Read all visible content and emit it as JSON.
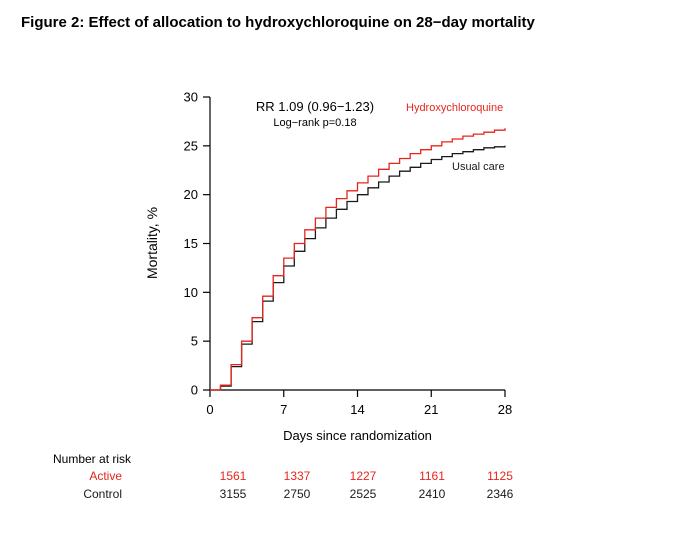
{
  "title": "Figure 2: Effect of allocation to hydroxychloroquine on 28−day mortality",
  "annotation": {
    "rr": "RR 1.09 (0.96−1.23)",
    "logrank": "Log−rank p=0.18"
  },
  "colors": {
    "active": "#e8251c",
    "control": "#1a1a1a"
  },
  "legend": {
    "active": "Hydroxychloroquine",
    "control": "Usual care"
  },
  "chart_data": {
    "type": "line",
    "subtype": "step",
    "title": "Effect of allocation to hydroxychloroquine on 28-day mortality",
    "xlabel": "Days since randomization",
    "ylabel": "Mortality, %",
    "xlim": [
      0,
      28
    ],
    "ylim": [
      0,
      30
    ],
    "xticks": [
      0,
      7,
      14,
      21,
      28
    ],
    "yticks": [
      0,
      5,
      10,
      15,
      20,
      25,
      30
    ],
    "grid": false,
    "legend_position": "inline-right",
    "annotations": [
      "RR 1.09 (0.96−1.23)",
      "Log−rank p=0.18"
    ],
    "series": [
      {
        "name": "Hydroxychloroquine",
        "color": "#e8251c",
        "x": [
          0,
          1,
          2,
          3,
          4,
          5,
          6,
          7,
          8,
          9,
          10,
          11,
          12,
          13,
          14,
          15,
          16,
          17,
          18,
          19,
          20,
          21,
          22,
          23,
          24,
          25,
          26,
          27,
          28
        ],
        "y": [
          0,
          0.5,
          2.6,
          5.0,
          7.4,
          9.6,
          11.7,
          13.5,
          15.0,
          16.4,
          17.6,
          18.7,
          19.6,
          20.4,
          21.2,
          21.9,
          22.6,
          23.2,
          23.7,
          24.2,
          24.6,
          25.0,
          25.4,
          25.7,
          26.0,
          26.2,
          26.4,
          26.6,
          26.8
        ]
      },
      {
        "name": "Usual care",
        "color": "#1a1a1a",
        "x": [
          0,
          1,
          2,
          3,
          4,
          5,
          6,
          7,
          8,
          9,
          10,
          11,
          12,
          13,
          14,
          15,
          16,
          17,
          18,
          19,
          20,
          21,
          22,
          23,
          24,
          25,
          26,
          27,
          28
        ],
        "y": [
          0,
          0.4,
          2.4,
          4.7,
          7.0,
          9.1,
          11.0,
          12.7,
          14.2,
          15.5,
          16.6,
          17.6,
          18.5,
          19.3,
          20.0,
          20.7,
          21.3,
          21.9,
          22.4,
          22.8,
          23.2,
          23.6,
          23.9,
          24.2,
          24.4,
          24.6,
          24.8,
          24.9,
          25.0
        ]
      }
    ]
  },
  "risk_table": {
    "header": "Number at risk",
    "days": [
      0,
      7,
      14,
      21,
      28
    ],
    "rows": [
      {
        "label": "Active",
        "values": [
          "1561",
          "1337",
          "1227",
          "1161",
          "1125"
        ]
      },
      {
        "label": "Control",
        "values": [
          "3155",
          "2750",
          "2525",
          "2410",
          "2346"
        ]
      }
    ]
  }
}
